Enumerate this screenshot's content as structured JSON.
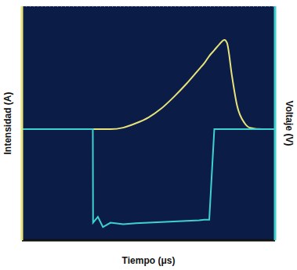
{
  "chart_data": {
    "type": "line",
    "x_label": "Tiempo (μs)",
    "y_label": "Intensidad (A)",
    "y2_label": "Voltaje (V)",
    "x": [
      0,
      1,
      2,
      2.8,
      2.81,
      3.0,
      3.2,
      3.5,
      4,
      4.5,
      5,
      5.5,
      6,
      6.5,
      7,
      7.2,
      7.4,
      7.6,
      7.8,
      8.0,
      8.1,
      8.3,
      8.5,
      8.8,
      9.0,
      9.5,
      10
    ],
    "xlim": [
      0,
      10
    ],
    "xticks": [
      0,
      1,
      2,
      3,
      4,
      5,
      6,
      7,
      8,
      9,
      10
    ],
    "ylim": [
      -4,
      4
    ],
    "yticks": [
      -4,
      -3,
      -2,
      -1,
      0,
      1,
      2,
      3,
      4
    ],
    "y2lim": [
      -4,
      4
    ],
    "y2ticks": [
      -4,
      -3,
      -2,
      -1,
      0,
      1,
      2,
      3,
      4
    ],
    "grid": true,
    "tick_labels": false,
    "series": [
      {
        "name": "Intensidad (A)",
        "color": "#e8e27a",
        "values": [
          -0.2,
          -0.2,
          -0.2,
          -0.2,
          -0.2,
          -0.2,
          -0.2,
          -0.2,
          -0.15,
          0,
          0.2,
          0.5,
          0.9,
          1.35,
          1.85,
          2.05,
          2.3,
          2.5,
          2.7,
          2.85,
          2.75,
          1.6,
          0.6,
          0.0,
          -0.15,
          -0.2,
          -0.2
        ]
      },
      {
        "name": "Voltaje (V)",
        "color": "#3fd0d0",
        "axis": "y2",
        "values": [
          -0.2,
          -0.2,
          -0.2,
          -0.2,
          -3.4,
          -3.2,
          -3.55,
          -3.4,
          -3.45,
          -3.42,
          -3.4,
          -3.38,
          -3.36,
          -3.34,
          -3.32,
          -3.3,
          -3.3,
          -0.2,
          -0.2,
          -0.2,
          -0.2,
          -0.2,
          -0.2,
          -0.2,
          -0.2,
          -0.2,
          -0.2
        ]
      }
    ]
  }
}
